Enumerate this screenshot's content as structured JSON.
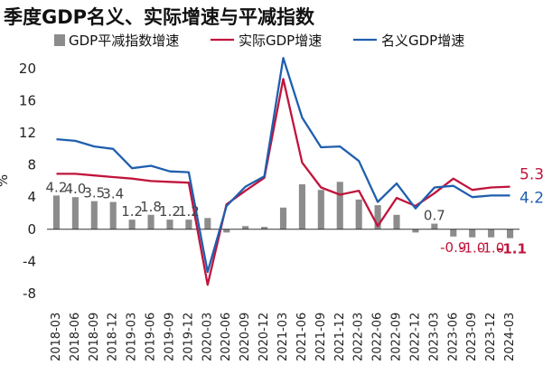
{
  "chart_data": {
    "type": "bar+line",
    "title": "季度GDP名义、实际增速与平减指数",
    "ylabel": "%",
    "ylim": [
      -8,
      22
    ],
    "yticks": [
      -8,
      -4,
      0,
      4,
      8,
      12,
      16,
      20
    ],
    "grid": false,
    "legend_position": "top",
    "categories": [
      "2018-03",
      "2018-06",
      "2018-09",
      "2018-12",
      "2019-03",
      "2019-06",
      "2019-09",
      "2019-12",
      "2020-03",
      "2020-06",
      "2020-09",
      "2020-12",
      "2021-03",
      "2021-06",
      "2021-09",
      "2021-12",
      "2022-03",
      "2022-06",
      "2022-09",
      "2022-12",
      "2023-03",
      "2023-06",
      "2023-09",
      "2023-12",
      "2024-03"
    ],
    "series": [
      {
        "name": "GDP平减指数增速",
        "type": "bar",
        "color": "#8c8c8c",
        "values": [
          4.2,
          4.0,
          3.5,
          3.4,
          1.2,
          1.8,
          1.2,
          1.2,
          1.4,
          -0.4,
          0.4,
          0.3,
          2.7,
          5.6,
          4.9,
          5.9,
          3.7,
          3.0,
          1.8,
          -0.4,
          0.7,
          -0.9,
          -1.0,
          -1.0,
          -1.1
        ],
        "data_labels": [
          {
            "index": 0,
            "text": "4.2"
          },
          {
            "index": 1,
            "text": "4.0"
          },
          {
            "index": 2,
            "text": "3.5"
          },
          {
            "index": 3,
            "text": "3.4"
          },
          {
            "index": 4,
            "text": "1.2"
          },
          {
            "index": 5,
            "text": "1.8"
          },
          {
            "index": 6,
            "text": "1.2"
          },
          {
            "index": 7,
            "text": "1.2"
          },
          {
            "index": 20,
            "text": "0.7"
          },
          {
            "index": 21,
            "text": "-0.9"
          },
          {
            "index": 22,
            "text": "-1.0"
          },
          {
            "index": 23,
            "text": "-1.0"
          },
          {
            "index": 24,
            "text": "-1.1"
          }
        ]
      },
      {
        "name": "实际GDP增速",
        "type": "line",
        "color": "#c0143c",
        "values": [
          6.9,
          6.9,
          6.7,
          6.5,
          6.3,
          6.0,
          5.9,
          5.8,
          -6.9,
          3.1,
          4.8,
          6.4,
          18.7,
          8.3,
          5.2,
          4.3,
          4.8,
          0.4,
          3.9,
          2.9,
          4.5,
          6.3,
          4.9,
          5.2,
          5.3
        ],
        "end_label": "5.3"
      },
      {
        "name": "名义GDP增速",
        "type": "line",
        "color": "#1f5fae",
        "values": [
          11.2,
          11.0,
          10.3,
          10.0,
          7.6,
          7.9,
          7.2,
          7.1,
          -5.3,
          2.9,
          5.3,
          6.6,
          21.3,
          13.9,
          10.2,
          10.3,
          8.5,
          3.4,
          5.7,
          2.6,
          5.2,
          5.4,
          4.0,
          4.2,
          4.2
        ],
        "end_label": "4.2"
      }
    ]
  }
}
